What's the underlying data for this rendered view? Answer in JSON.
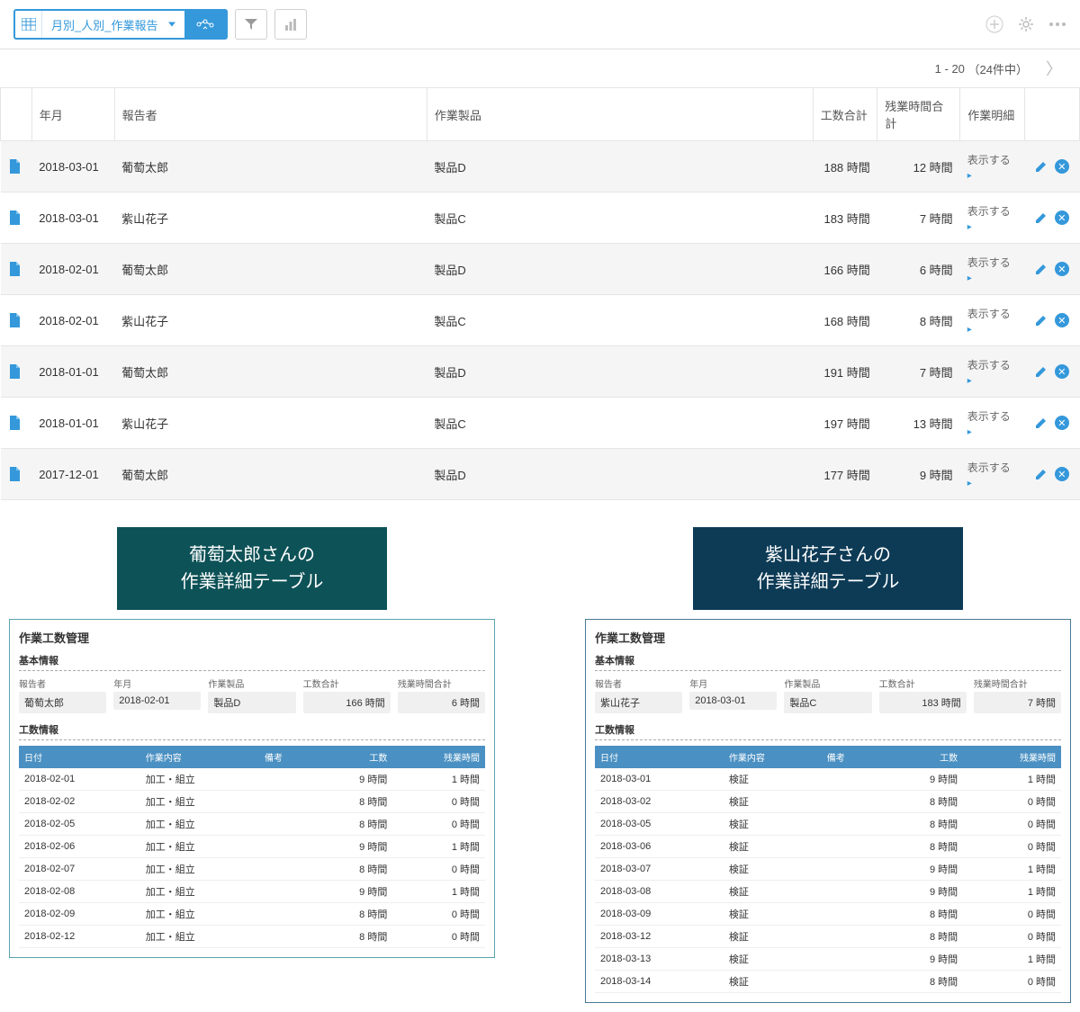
{
  "toolbar": {
    "view_label": "月別_人別_作業報告"
  },
  "pagination": {
    "range": "1 - 20",
    "total": "（24件中）"
  },
  "main_table": {
    "headers": {
      "date": "年月",
      "reporter": "報告者",
      "product": "作業製品",
      "hours": "工数合計",
      "overtime": "残業時間合計",
      "detail": "作業明細"
    },
    "show_label": "表示する",
    "hours_unit": "時間",
    "rows": [
      {
        "date": "2018-03-01",
        "reporter": "葡萄太郎",
        "product": "製品D",
        "hours": "188",
        "ot": "12"
      },
      {
        "date": "2018-03-01",
        "reporter": "紫山花子",
        "product": "製品C",
        "hours": "183",
        "ot": "7"
      },
      {
        "date": "2018-02-01",
        "reporter": "葡萄太郎",
        "product": "製品D",
        "hours": "166",
        "ot": "6"
      },
      {
        "date": "2018-02-01",
        "reporter": "紫山花子",
        "product": "製品C",
        "hours": "168",
        "ot": "8"
      },
      {
        "date": "2018-01-01",
        "reporter": "葡萄太郎",
        "product": "製品D",
        "hours": "191",
        "ot": "7"
      },
      {
        "date": "2018-01-01",
        "reporter": "紫山花子",
        "product": "製品C",
        "hours": "197",
        "ot": "13"
      },
      {
        "date": "2017-12-01",
        "reporter": "葡萄太郎",
        "product": "製品D",
        "hours": "177",
        "ot": "9"
      }
    ]
  },
  "callouts": {
    "left_line1": "葡萄太郎さんの",
    "left_line2": "作業詳細テーブル",
    "right_line1": "紫山花子さんの",
    "right_line2": "作業詳細テーブル"
  },
  "panel_labels": {
    "title": "作業工数管理",
    "basic": "基本情報",
    "reporter": "報告者",
    "month": "年月",
    "product": "作業製品",
    "hours": "工数合計",
    "ot": "残業時間合計",
    "work_info": "工数情報",
    "h_date": "日付",
    "h_task": "作業内容",
    "h_note": "備考",
    "h_hours": "工数",
    "h_ot": "残業時間",
    "unit": "時間"
  },
  "left_panel": {
    "reporter": "葡萄太郎",
    "month": "2018-02-01",
    "product": "製品D",
    "hours": "166",
    "ot": "6",
    "rows": [
      {
        "d": "2018-02-01",
        "t": "加工・組立",
        "h": "9",
        "o": "1"
      },
      {
        "d": "2018-02-02",
        "t": "加工・組立",
        "h": "8",
        "o": "0"
      },
      {
        "d": "2018-02-05",
        "t": "加工・組立",
        "h": "8",
        "o": "0"
      },
      {
        "d": "2018-02-06",
        "t": "加工・組立",
        "h": "9",
        "o": "1"
      },
      {
        "d": "2018-02-07",
        "t": "加工・組立",
        "h": "8",
        "o": "0"
      },
      {
        "d": "2018-02-08",
        "t": "加工・組立",
        "h": "9",
        "o": "1"
      },
      {
        "d": "2018-02-09",
        "t": "加工・組立",
        "h": "8",
        "o": "0"
      },
      {
        "d": "2018-02-12",
        "t": "加工・組立",
        "h": "8",
        "o": "0"
      }
    ]
  },
  "right_panel": {
    "reporter": "紫山花子",
    "month": "2018-03-01",
    "product": "製品C",
    "hours": "183",
    "ot": "7",
    "rows": [
      {
        "d": "2018-03-01",
        "t": "検証",
        "h": "9",
        "o": "1"
      },
      {
        "d": "2018-03-02",
        "t": "検証",
        "h": "8",
        "o": "0"
      },
      {
        "d": "2018-03-05",
        "t": "検証",
        "h": "8",
        "o": "0"
      },
      {
        "d": "2018-03-06",
        "t": "検証",
        "h": "8",
        "o": "0"
      },
      {
        "d": "2018-03-07",
        "t": "検証",
        "h": "9",
        "o": "1"
      },
      {
        "d": "2018-03-08",
        "t": "検証",
        "h": "9",
        "o": "1"
      },
      {
        "d": "2018-03-09",
        "t": "検証",
        "h": "8",
        "o": "0"
      },
      {
        "d": "2018-03-12",
        "t": "検証",
        "h": "8",
        "o": "0"
      },
      {
        "d": "2018-03-13",
        "t": "検証",
        "h": "9",
        "o": "1"
      },
      {
        "d": "2018-03-14",
        "t": "検証",
        "h": "8",
        "o": "0"
      }
    ]
  },
  "colors": {
    "primary": "#3498db",
    "teal": "#0d5257",
    "navy": "#0d3b56",
    "detail_header": "#4a90c2"
  }
}
